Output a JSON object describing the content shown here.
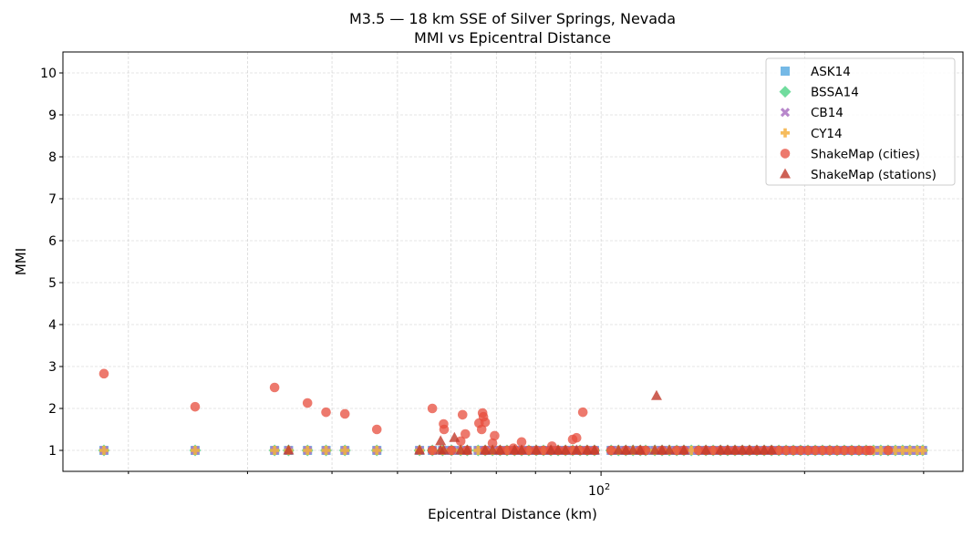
{
  "chart_data": {
    "type": "scatter",
    "title": "M3.5 — 18 km SSE of Silver Springs, Nevada",
    "subtitle": "MMI vs Epicentral Distance",
    "xlabel": "Epicentral Distance (km)",
    "ylabel": "MMI",
    "xscale": "log",
    "xlim": [
      16,
      343
    ],
    "ylim": [
      0.5,
      10.5
    ],
    "x_major_ticks": [
      100
    ],
    "x_major_tick_labels": [
      "10",
      "2"
    ],
    "x_minor_ticks": [
      20,
      30,
      40,
      50,
      60,
      70,
      80,
      90,
      200,
      300
    ],
    "y_ticks": [
      1,
      2,
      3,
      4,
      5,
      6,
      7,
      8,
      9,
      10
    ],
    "y_tick_labels": [
      "1",
      "2",
      "3",
      "4",
      "5",
      "6",
      "7",
      "8",
      "9",
      "10"
    ],
    "grid": true,
    "legend_position": "top-right",
    "model_distances": [
      18.4,
      25.1,
      32.9,
      34.5,
      36.8,
      39.2,
      41.8,
      46.6,
      53.9,
      56.3,
      58.3,
      60.1,
      62.0,
      63.4,
      65.8,
      67.4,
      69.1,
      70.9,
      72.6,
      74.5,
      76.3,
      78.2,
      80.2,
      82.2,
      84.3,
      86.4,
      88.6,
      90.8,
      93.1,
      95.4,
      97.8,
      103.5,
      106.1,
      108.8,
      111.5,
      114.3,
      116.4,
      120.1,
      123.1,
      126.2,
      129.4,
      132.6,
      136.0,
      139.4,
      142.9,
      146.5,
      150.2,
      153.9,
      157.8,
      161.8,
      165.8,
      170.0,
      174.3,
      178.7,
      183.2,
      187.8,
      192.5,
      197.3,
      202.3,
      207.4,
      212.6,
      217.9,
      223.4,
      229.0,
      234.8,
      240.7,
      246.7,
      252.9,
      259.3,
      265.8,
      272.5,
      279.3,
      286.3,
      293.5,
      299.0
    ],
    "series": [
      {
        "name": "ASK14",
        "marker": "square",
        "color": "#5DADE2",
        "mmi_all": 1
      },
      {
        "name": "BSSA14",
        "marker": "diamond",
        "color": "#58D68D",
        "mmi_all": 1
      },
      {
        "name": "CB14",
        "marker": "x",
        "color": "#AF7AC5",
        "mmi_all": 1
      },
      {
        "name": "CY14",
        "marker": "plus",
        "color": "#F5B041",
        "mmi_all": 1
      },
      {
        "name": "ShakeMap (cities)",
        "marker": "circle",
        "color": "#E74C3C",
        "points": [
          [
            18.4,
            2.83
          ],
          [
            25.1,
            2.04
          ],
          [
            32.9,
            2.5
          ],
          [
            36.8,
            2.13
          ],
          [
            39.2,
            1.91
          ],
          [
            41.8,
            1.87
          ],
          [
            46.6,
            1.5
          ],
          [
            56.3,
            2.0
          ],
          [
            58.5,
            1.63
          ],
          [
            58.6,
            1.5
          ],
          [
            62.4,
            1.85
          ],
          [
            63.0,
            1.39
          ],
          [
            62.0,
            1.22
          ],
          [
            66.8,
            1.89
          ],
          [
            67.0,
            1.8
          ],
          [
            66.0,
            1.65
          ],
          [
            67.4,
            1.67
          ],
          [
            66.6,
            1.5
          ],
          [
            69.6,
            1.35
          ],
          [
            69.1,
            1.17
          ],
          [
            76.3,
            1.2
          ],
          [
            74.2,
            1.05
          ],
          [
            84.6,
            1.1
          ],
          [
            90.8,
            1.26
          ],
          [
            92.0,
            1.3
          ],
          [
            94.0,
            1.91
          ],
          [
            56.3,
            1
          ],
          [
            60.1,
            1
          ],
          [
            63.4,
            1
          ],
          [
            67.4,
            1
          ],
          [
            70.9,
            1
          ],
          [
            72.6,
            1
          ],
          [
            74.5,
            1
          ],
          [
            76.3,
            1
          ],
          [
            78.2,
            1
          ],
          [
            80.2,
            1
          ],
          [
            82.2,
            1
          ],
          [
            84.3,
            1
          ],
          [
            86.4,
            1
          ],
          [
            88.6,
            1
          ],
          [
            90.8,
            1
          ],
          [
            93.1,
            1
          ],
          [
            95.4,
            1
          ],
          [
            97.8,
            1
          ],
          [
            103.5,
            1
          ],
          [
            108.8,
            1
          ],
          [
            114.3,
            1
          ],
          [
            116.4,
            1
          ],
          [
            123.1,
            1
          ],
          [
            129.4,
            1
          ],
          [
            132.6,
            1
          ],
          [
            139.4,
            1
          ],
          [
            142.9,
            1
          ],
          [
            146.5,
            1
          ],
          [
            150.2,
            1
          ],
          [
            153.9,
            1
          ],
          [
            157.8,
            1
          ],
          [
            161.8,
            1
          ],
          [
            165.8,
            1
          ],
          [
            170.0,
            1
          ],
          [
            174.3,
            1
          ],
          [
            178.7,
            1
          ],
          [
            183.2,
            1
          ],
          [
            187.8,
            1
          ],
          [
            192.5,
            1
          ],
          [
            197.3,
            1
          ],
          [
            202.3,
            1
          ],
          [
            207.4,
            1
          ],
          [
            212.6,
            1
          ],
          [
            217.9,
            1
          ],
          [
            223.4,
            1
          ],
          [
            229.0,
            1
          ],
          [
            234.8,
            1
          ],
          [
            240.7,
            1
          ],
          [
            246.7,
            1
          ],
          [
            250.0,
            1
          ],
          [
            265.8,
            1
          ]
        ]
      },
      {
        "name": "ShakeMap (stations)",
        "marker": "triangle",
        "color": "#C0392B",
        "points": [
          [
            57.9,
            1.22
          ],
          [
            60.7,
            1.3
          ],
          [
            120.8,
            2.3
          ],
          [
            34.5,
            1
          ],
          [
            53.9,
            1
          ],
          [
            57.9,
            1
          ],
          [
            58.5,
            1
          ],
          [
            62.0,
            1
          ],
          [
            63.4,
            1
          ],
          [
            67.4,
            1
          ],
          [
            69.1,
            1
          ],
          [
            70.9,
            1
          ],
          [
            74.5,
            1
          ],
          [
            76.3,
            1
          ],
          [
            80.2,
            1
          ],
          [
            84.3,
            1
          ],
          [
            86.4,
            1
          ],
          [
            88.6,
            1
          ],
          [
            92.0,
            1
          ],
          [
            95.4,
            1
          ],
          [
            97.8,
            1
          ],
          [
            106.1,
            1
          ],
          [
            108.8,
            1
          ],
          [
            111.5,
            1
          ],
          [
            114.3,
            1
          ],
          [
            120.1,
            1
          ],
          [
            123.1,
            1
          ],
          [
            126.2,
            1
          ],
          [
            132.6,
            1
          ],
          [
            142.9,
            1
          ],
          [
            150.2,
            1
          ],
          [
            153.9,
            1
          ],
          [
            157.8,
            1
          ],
          [
            161.8,
            1
          ],
          [
            165.8,
            1
          ],
          [
            170.0,
            1
          ],
          [
            174.3,
            1
          ],
          [
            178.7,
            1
          ]
        ]
      }
    ]
  }
}
